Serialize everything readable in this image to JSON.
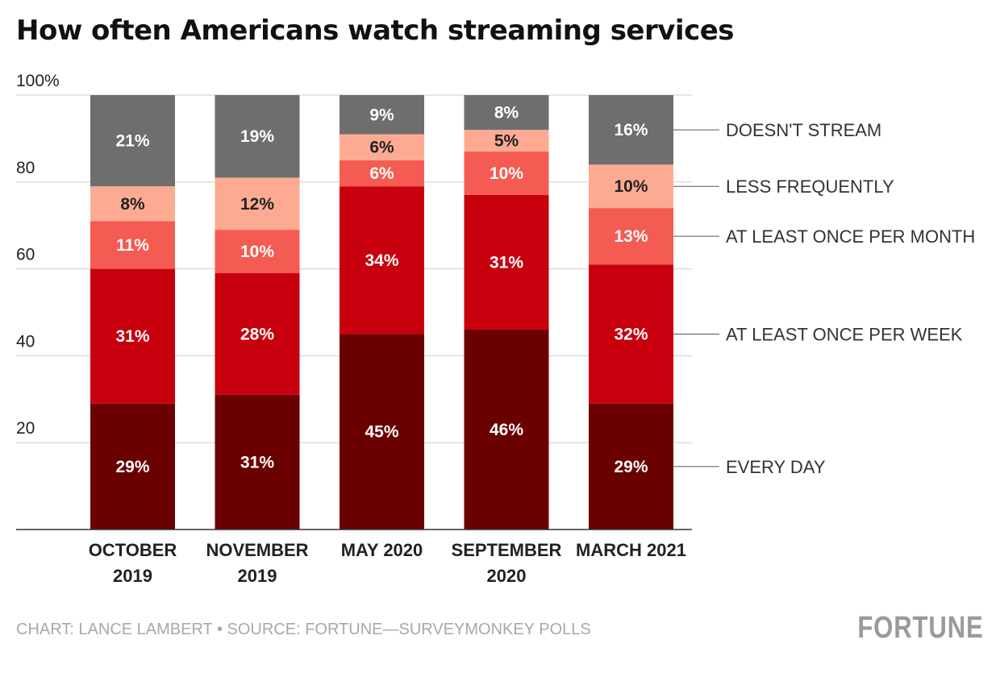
{
  "title": "How often Americans watch streaming services",
  "footer": "CHART: LANCE LAMBERT • SOURCE: FORTUNE—SURVEYMONKEY POLLS",
  "brand": "FORTUNE",
  "chart_data": {
    "type": "bar",
    "stacked": true,
    "categories": [
      [
        "OCTOBER",
        "2019"
      ],
      [
        "NOVEMBER",
        "2019"
      ],
      [
        "MAY 2020"
      ],
      [
        "SEPTEMBER",
        "2020"
      ],
      [
        "MARCH 2021"
      ]
    ],
    "series": [
      {
        "name": "EVERY DAY",
        "color": "#6b0000",
        "values": [
          29,
          31,
          45,
          46,
          29
        ],
        "labels": [
          "29%",
          "31%",
          "45%",
          "46%",
          "29%"
        ]
      },
      {
        "name": "AT LEAST ONCE PER WEEK",
        "color": "#c8000e",
        "values": [
          31,
          28,
          34,
          31,
          32
        ],
        "labels": [
          "31%",
          "28%",
          "34%",
          "31%",
          "32%"
        ]
      },
      {
        "name": "AT LEAST ONCE PER MONTH",
        "color": "#f45b52",
        "values": [
          11,
          10,
          6,
          10,
          13
        ],
        "labels": [
          "11%",
          "10%",
          "6%",
          "10%",
          "13%"
        ]
      },
      {
        "name": "LESS FREQUENTLY",
        "color": "#fcab92",
        "values": [
          8,
          12,
          6,
          5,
          10
        ],
        "labels": [
          "8%",
          "12%",
          "6%",
          "5%",
          "10%"
        ]
      },
      {
        "name": "DOESN'T STREAM",
        "color": "#6e6e6e",
        "values": [
          21,
          19,
          9,
          8,
          16
        ],
        "labels": [
          "21%",
          "19%",
          "9%",
          "8%",
          "16%"
        ]
      }
    ],
    "y_ticks": [
      20,
      40,
      60,
      80,
      100
    ],
    "y_tick_labels": [
      "20",
      "40",
      "60",
      "80",
      "100%"
    ],
    "ylim": [
      0,
      100
    ],
    "grid": true,
    "legend": "right, aligned to last bar"
  }
}
